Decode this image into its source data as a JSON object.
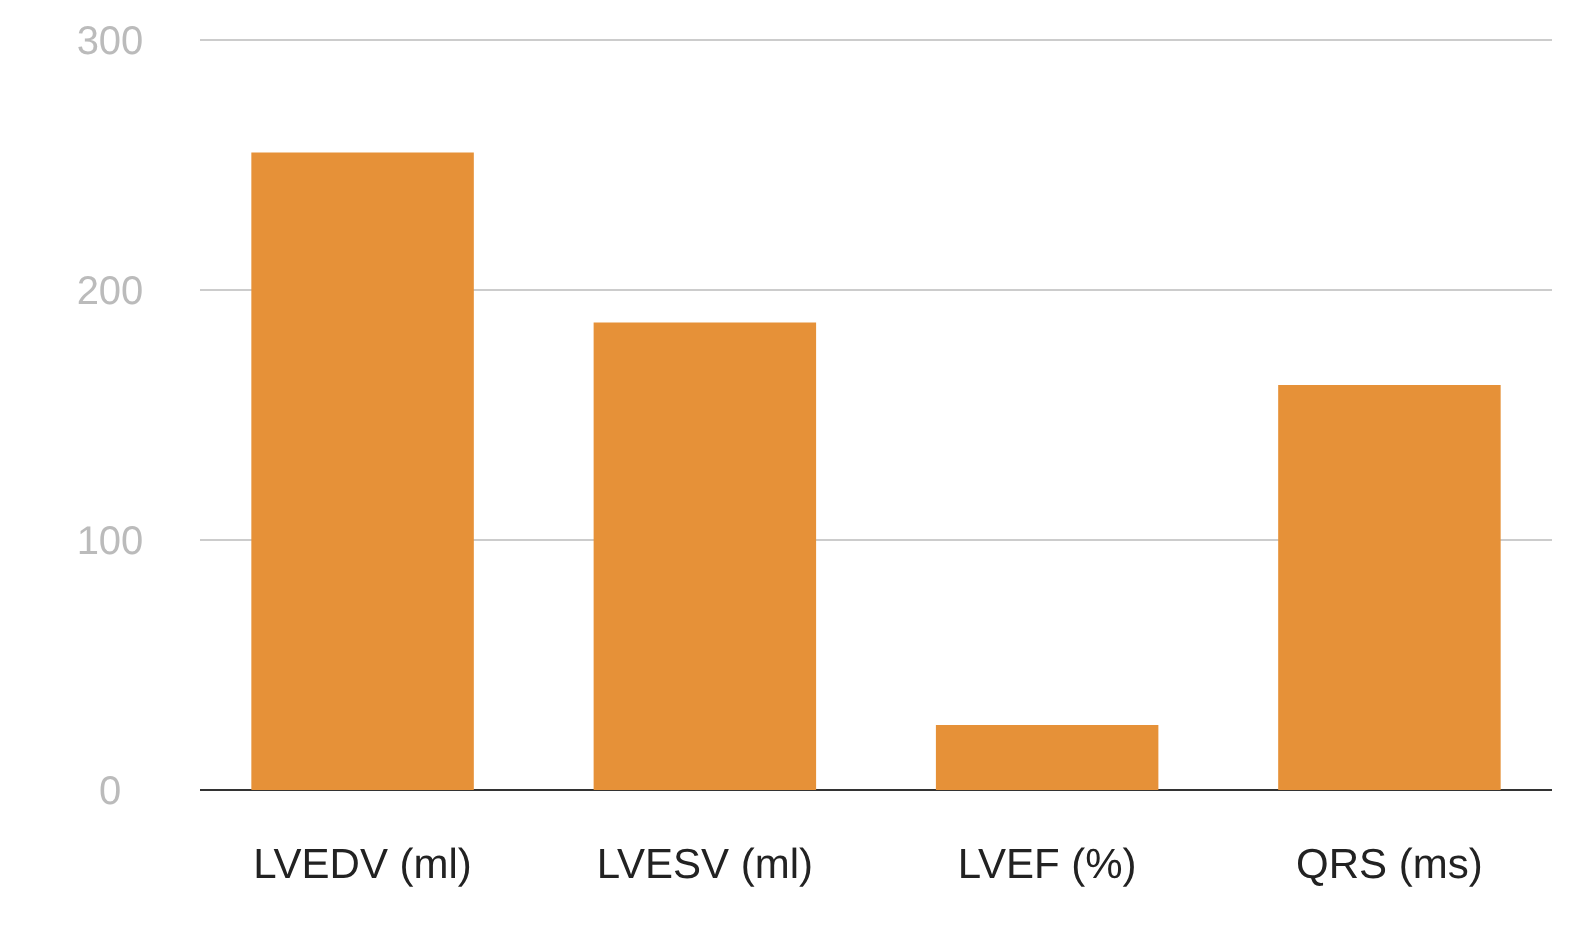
{
  "chart_data": {
    "type": "bar",
    "categories": [
      "LVEDV (ml)",
      "LVESV (ml)",
      "LVEF (%)",
      "QRS (ms)"
    ],
    "values": [
      255,
      187,
      26,
      162
    ],
    "color": "#e69138",
    "ylim": [
      0,
      300
    ],
    "yticks": [
      0,
      100,
      200,
      300
    ],
    "grid": "y"
  }
}
